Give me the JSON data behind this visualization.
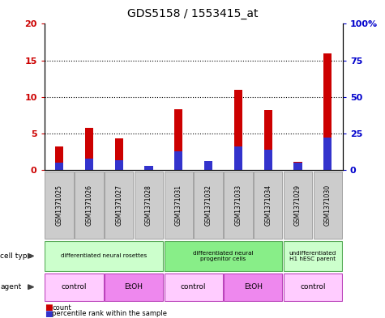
{
  "title": "GDS5158 / 1553415_at",
  "samples": [
    "GSM1371025",
    "GSM1371026",
    "GSM1371027",
    "GSM1371028",
    "GSM1371031",
    "GSM1371032",
    "GSM1371033",
    "GSM1371034",
    "GSM1371029",
    "GSM1371030"
  ],
  "counts": [
    3.2,
    5.8,
    4.3,
    0.1,
    8.3,
    0.9,
    11.0,
    8.2,
    1.1,
    16.0
  ],
  "percentiles_raw": [
    5,
    8,
    7,
    3,
    13,
    6,
    16,
    14,
    5,
    22
  ],
  "ylim_left": [
    0,
    20
  ],
  "ylim_right": [
    0,
    100
  ],
  "yticks_left": [
    0,
    5,
    10,
    15,
    20
  ],
  "yticks_right": [
    0,
    25,
    50,
    75,
    100
  ],
  "ytick_labels_left": [
    "0",
    "5",
    "10",
    "15",
    "20"
  ],
  "ytick_labels_right": [
    "0",
    "25",
    "50",
    "75",
    "100%"
  ],
  "bar_color_count": "#cc0000",
  "bar_color_pct": "#3333cc",
  "bar_width": 0.28,
  "cell_type_groups": [
    {
      "label": "differentiated neural rosettes",
      "start": 0,
      "end": 3,
      "color": "#ccffcc"
    },
    {
      "label": "differentiated neural\nprogenitor cells",
      "start": 4,
      "end": 7,
      "color": "#88ee88"
    },
    {
      "label": "undifferentiated\nH1 hESC parent",
      "start": 8,
      "end": 9,
      "color": "#ccffcc"
    }
  ],
  "agent_groups": [
    {
      "label": "control",
      "start": 0,
      "end": 1,
      "color": "#ffccff"
    },
    {
      "label": "EtOH",
      "start": 2,
      "end": 3,
      "color": "#ee88ee"
    },
    {
      "label": "control",
      "start": 4,
      "end": 5,
      "color": "#ffccff"
    },
    {
      "label": "EtOH",
      "start": 6,
      "end": 7,
      "color": "#ee88ee"
    },
    {
      "label": "control",
      "start": 8,
      "end": 9,
      "color": "#ffccff"
    }
  ],
  "sample_bg_color": "#cccccc",
  "tick_label_color_left": "#cc0000",
  "tick_label_color_right": "#0000cc"
}
